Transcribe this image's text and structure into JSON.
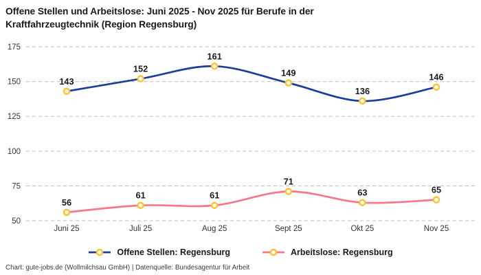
{
  "title": "Offene Stellen und Arbeitslose: Juni 2025 - Nov 2025 für Berufe in der Kraftfahrzeugtechnik (Region Regensburg)",
  "footer": "Chart: gute-jobs.de (Wollmilchsau GmbH) | Datenquelle: Bundesagentur für Arbeit",
  "colors": {
    "background": "#ffffff",
    "title_text": "#1a1a1a",
    "axis_text": "#333333",
    "value_label_text": "#1a1a1a",
    "gridline": "#c9c9c9",
    "series_blue": "#1e3d9b",
    "series_pink": "#f9758d",
    "marker_ring": "#fcc42c",
    "marker_fill": "#ffffff"
  },
  "chart_data": {
    "type": "line",
    "title": "Offene Stellen und Arbeitslose: Juni 2025 - Nov 2025 für Berufe in der Kraftfahrzeugtechnik (Region Regensburg)",
    "categories": [
      "Juni 25",
      "Juli 25",
      "Aug 25",
      "Sept 25",
      "Okt 25",
      "Nov 25"
    ],
    "series": [
      {
        "name": "Offene Stellen: Regensburg",
        "color": "#1e3d9b",
        "values": [
          143,
          152,
          161,
          149,
          136,
          146
        ]
      },
      {
        "name": "Arbeitslose: Regensburg",
        "color": "#f9758d",
        "values": [
          56,
          61,
          61,
          71,
          63,
          65
        ]
      }
    ],
    "yticks": [
      175,
      150,
      125,
      100,
      75,
      50
    ],
    "ylim": [
      50,
      175
    ],
    "xlabel": "",
    "ylabel": "",
    "grid": "horizontal-dashed",
    "legend_position": "bottom",
    "marker": {
      "shape": "circle",
      "fill": "#ffffff",
      "stroke": "#fcc42c"
    },
    "data_labels": true
  }
}
